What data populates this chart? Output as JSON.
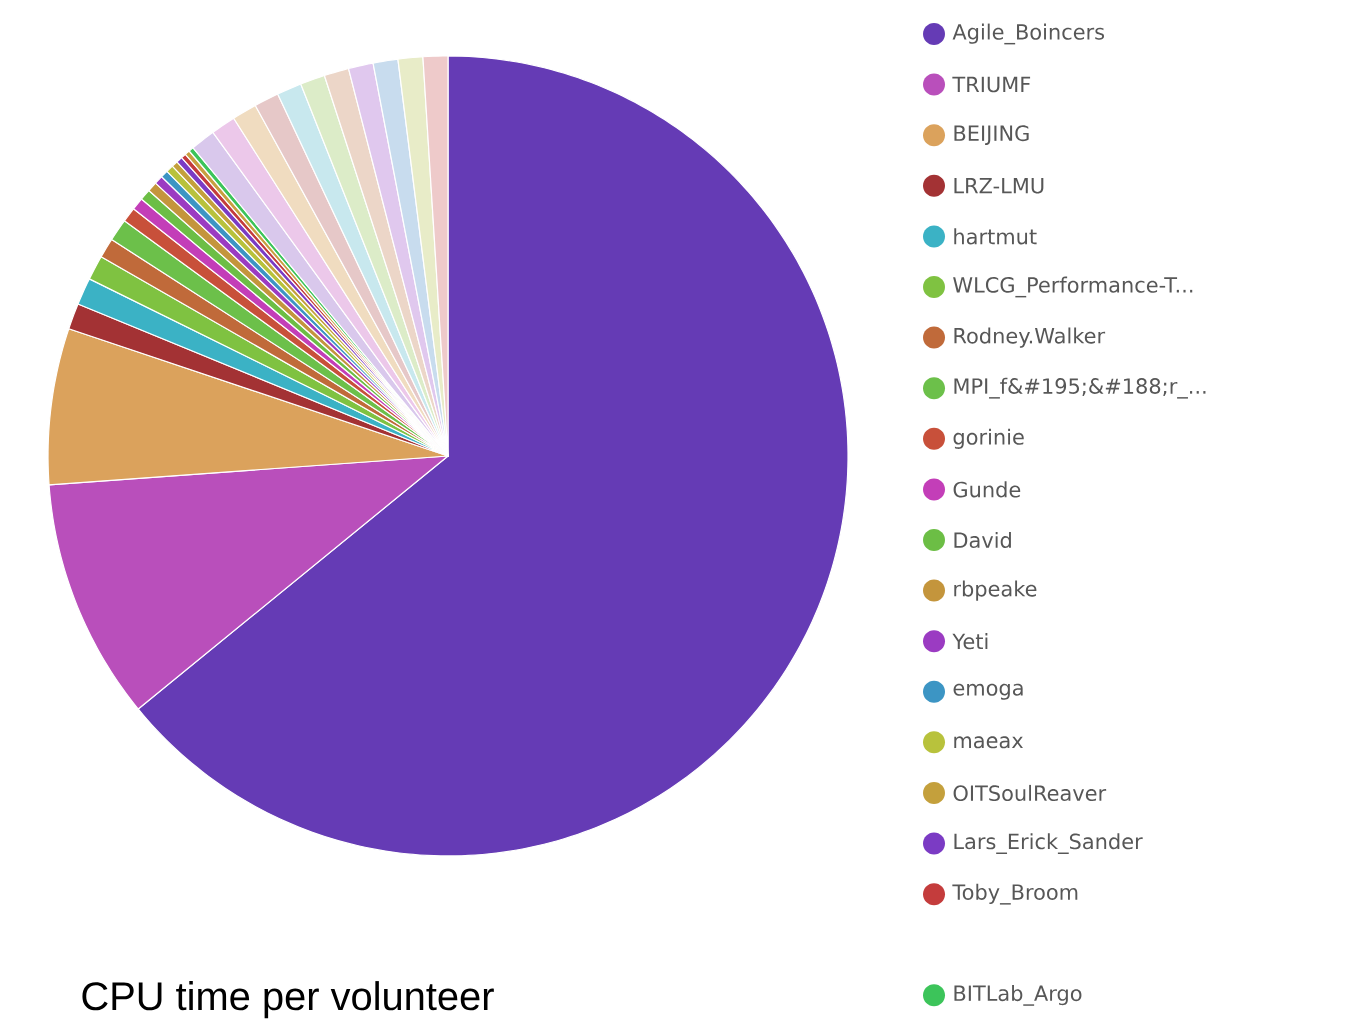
{
  "chart_data": {
    "type": "pie",
    "title": "CPU time per volunteer",
    "legend": "right",
    "categories": [
      "Agile_Boincers",
      "TRIUMF",
      "BEIJING",
      "LRZ-LMU",
      "hartmut",
      "WLCG_Performance-T...",
      "Rodney.Walker",
      "MPI_f&#195;&#188;r_...",
      "gorinie",
      "Gunde",
      "David",
      "rbpeake",
      "Yeti",
      "emoga",
      "maeax",
      "OITSoulReaver",
      "Lars_Erick_Sander",
      "Toby_Broom",
      null,
      "BITLab_Argo",
      null,
      null,
      null,
      null,
      null,
      null,
      null,
      null,
      null,
      null,
      null
    ],
    "values": [
      64.1,
      9.75,
      6.3,
      1.05,
      1.1,
      1.0,
      0.8,
      0.9,
      0.6,
      0.5,
      0.45,
      0.4,
      0.35,
      0.3,
      0.3,
      0.25,
      0.25,
      0.2,
      0.2,
      0.2,
      1.0,
      1.0,
      1.0,
      1.0,
      1.0,
      1.0,
      1.0,
      1.0,
      1.0,
      1.0,
      1.0
    ],
    "colors": [
      "#653bb5",
      "#b94fbb",
      "#dba25c",
      "#a33234",
      "#3bb2c5",
      "#7fc241",
      "#c06a3a",
      "#6cc04a",
      "#c8503a",
      "#c33eb8",
      "#6cbe45",
      "#c4953c",
      "#9b3bc2",
      "#3c95c4",
      "#b8c23c",
      "#c4a03c",
      "#7b3bc4",
      "#c43c3c",
      "#c8a040",
      "#3cc45a",
      "#d9c8ec",
      "#ecc8ea",
      "#f0dcc0",
      "#e6c8c8",
      "#c8e8ee",
      "#dcecc8",
      "#ecd6c8",
      "#e0c8ee",
      "#c8dcee",
      "#e8ecc8",
      "#eecaca"
    ]
  }
}
